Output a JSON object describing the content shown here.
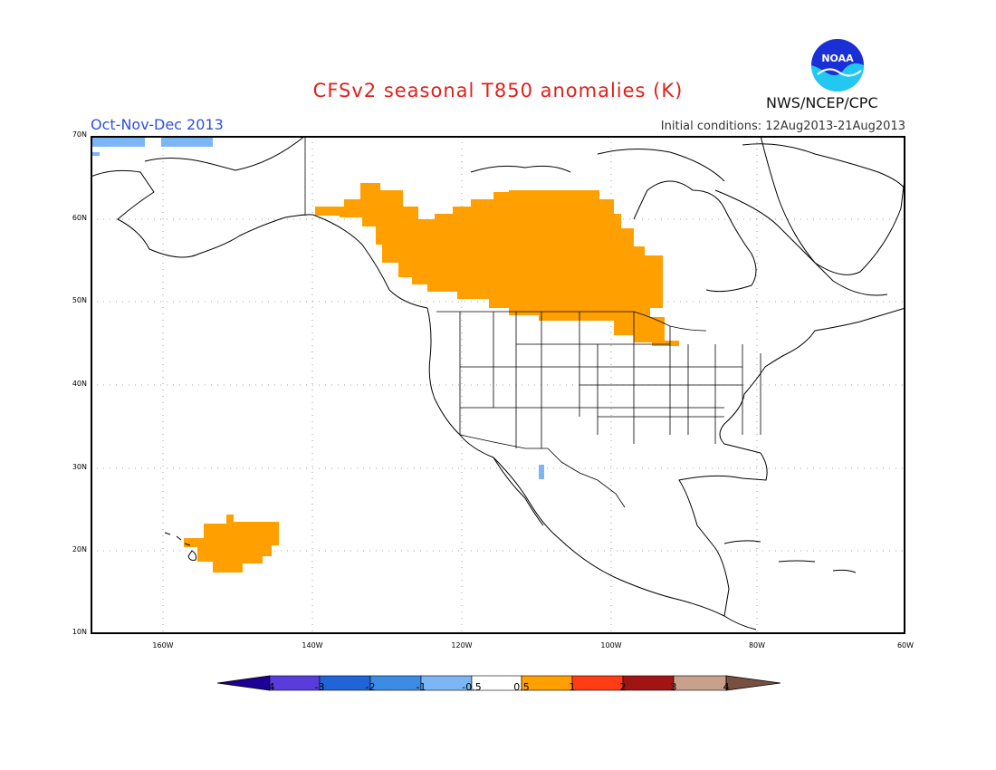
{
  "header": {
    "title": "CFSv2 seasonal T850 anomalies (K)",
    "period": "Oct-Nov-Dec 2013",
    "initial_conditions": "Initial conditions: 12Aug2013-21Aug2013",
    "organization": "NWS/NCEP/CPC"
  },
  "logo": {
    "text": "NOAA",
    "icon": "noaa-logo-icon"
  },
  "map": {
    "lat_labels": [
      "70N",
      "60N",
      "50N",
      "40N",
      "30N",
      "20N",
      "10N"
    ],
    "lon_labels": [
      "160W",
      "140W",
      "120W",
      "100W",
      "80W",
      "60W"
    ],
    "lat_range": [
      10,
      70
    ],
    "lon_range": [
      -172,
      -60
    ],
    "grid": "dotted",
    "anomaly_regions": [
      {
        "name": "Western Canada / Alaska Panhandle / Northern Plains",
        "category": "0.5 to 1",
        "color": "#ffa000"
      },
      {
        "name": "Hawaii",
        "category": "0.5 to 1",
        "color": "#ffa000"
      },
      {
        "name": "Arctic coast of Alaska",
        "category": "-1 to -0.5",
        "color": "#7cb6f5"
      },
      {
        "name": "Southwestern US",
        "category": "-1 to -0.5",
        "color": "#7cb6f5"
      }
    ]
  },
  "colorbar": {
    "labels": [
      "-4",
      "-3",
      "-2",
      "-1",
      "-0.5",
      "0.5",
      "1",
      "2",
      "3",
      "4"
    ],
    "colors": [
      "#1e0096",
      "#5a3cdc",
      "#2064d8",
      "#3c8ce6",
      "#7cb6f5",
      "#ffffff",
      "#ffa000",
      "#ff3c14",
      "#a01414",
      "#c8a08c",
      "#785040"
    ]
  }
}
